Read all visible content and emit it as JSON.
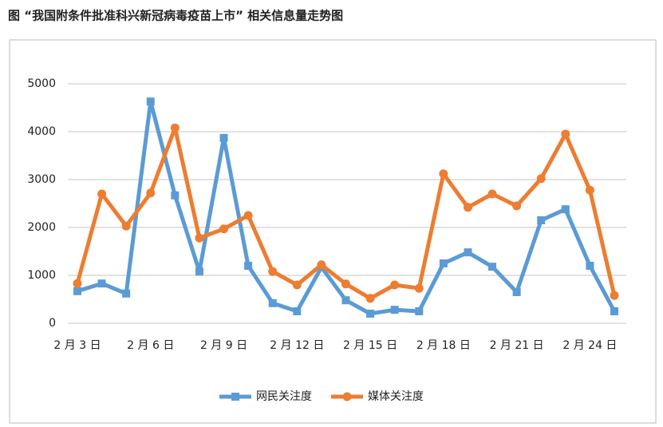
{
  "chart_data": {
    "type": "line",
    "title": "图 “我国附条件批准科兴新冠病毒疫苗上市” 相关信息量走势图",
    "categories": [
      "2 月 3 日",
      null,
      null,
      "2 月 6 日",
      null,
      null,
      "2 月 9 日",
      null,
      null,
      "2 月 12 日",
      null,
      null,
      "2 月 15 日",
      null,
      null,
      "2 月 18 日",
      null,
      null,
      "2 月 21 日",
      null,
      null,
      "2 月 24 日",
      null
    ],
    "series": [
      {
        "name": "网民关注度",
        "color": "#5b9bd5",
        "values": [
          670,
          830,
          620,
          4630,
          2670,
          1080,
          3870,
          1200,
          420,
          250,
          1170,
          480,
          200,
          280,
          250,
          1250,
          1480,
          1180,
          650,
          2150,
          2380,
          1200,
          250
        ]
      },
      {
        "name": "媒体关注度",
        "color": "#ed7d31",
        "values": [
          830,
          2700,
          2030,
          2720,
          4080,
          1780,
          1970,
          2250,
          1080,
          800,
          1220,
          820,
          520,
          800,
          730,
          3120,
          2420,
          2700,
          2450,
          3020,
          3950,
          2780,
          580
        ]
      }
    ],
    "ylim": [
      0,
      5000
    ],
    "yticks": [
      0,
      1000,
      2000,
      3000,
      4000,
      5000
    ],
    "grid": true,
    "legend": "bottom"
  }
}
